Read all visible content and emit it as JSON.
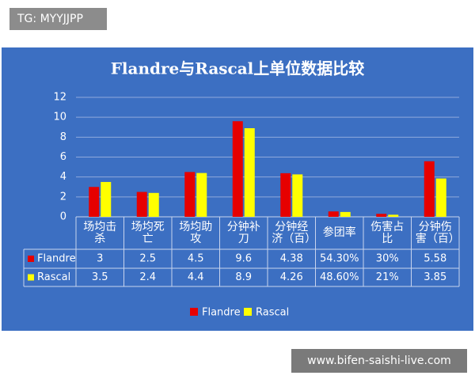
{
  "chart_data": {
    "type": "bar",
    "title": "Flandre与Rascal上单位数据比较",
    "categories": [
      "场均击杀",
      "场均死亡",
      "场均助攻",
      "分钟补刀",
      "分钟经济（百）",
      "参团率",
      "伤害占比",
      "分钟伤害（百）"
    ],
    "series": [
      {
        "name": "Flandre",
        "color": "#e60000",
        "values": [
          3,
          2.5,
          4.5,
          9.6,
          4.38,
          0.543,
          0.3,
          5.58
        ],
        "value_labels": [
          "3",
          "2.5",
          "4.5",
          "9.6",
          "4.38",
          "54.30%",
          "30%",
          "5.58"
        ]
      },
      {
        "name": "Rascal",
        "color": "#ffff00",
        "values": [
          3.5,
          2.4,
          4.4,
          8.9,
          4.26,
          0.486,
          0.21,
          3.85
        ],
        "value_labels": [
          "3.5",
          "2.4",
          "4.4",
          "8.9",
          "4.26",
          "48.60%",
          "21%",
          "3.85"
        ]
      }
    ],
    "ylim": [
      0,
      12
    ],
    "yticks": [
      0,
      2,
      4,
      6,
      8,
      10,
      12
    ],
    "grid": true,
    "legend": "bottom"
  },
  "overlay": {
    "top_left": "TG: MYYJJPP",
    "bottom_right": "www.bifen-saishi-live.com"
  }
}
